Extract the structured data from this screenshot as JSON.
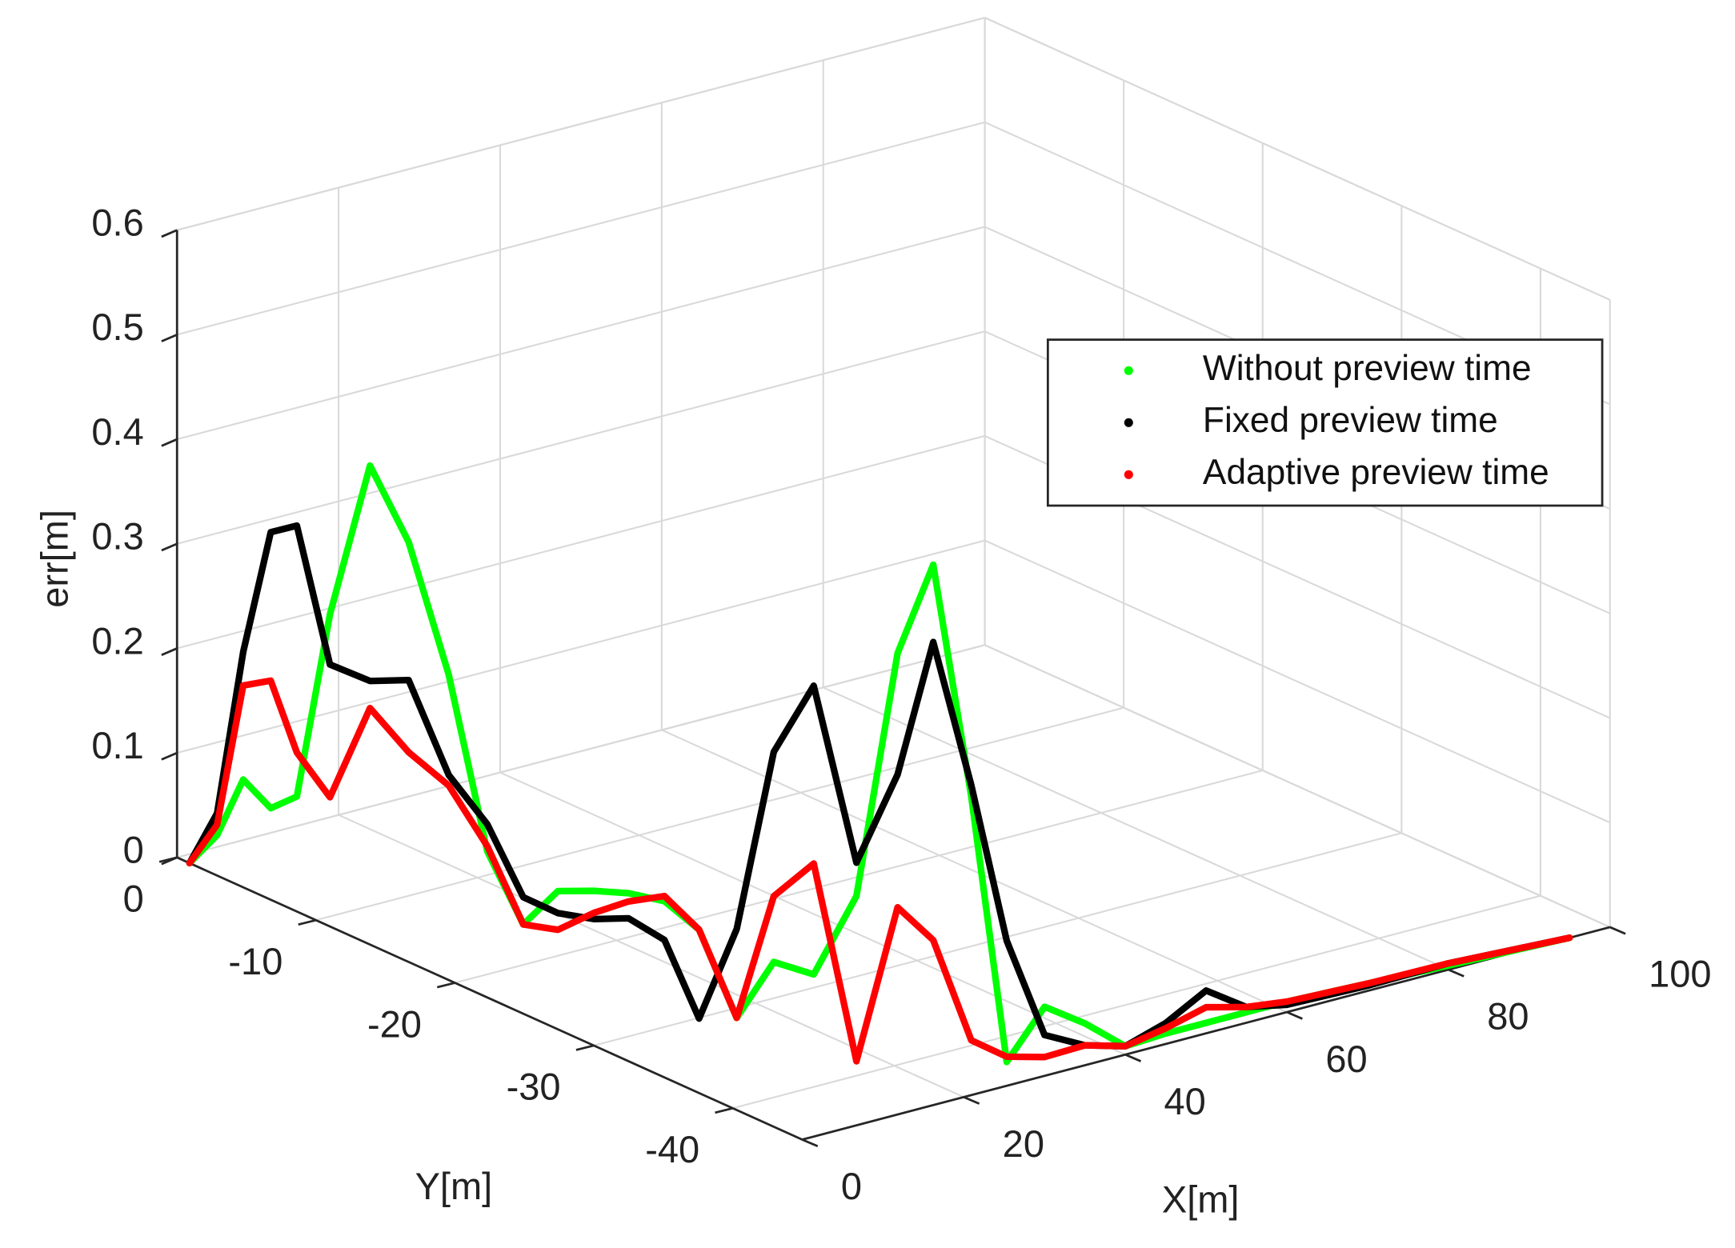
{
  "chart_data": {
    "type": "line3d",
    "xlabel": "X[m]",
    "ylabel": "Y[m]",
    "zlabel": "err[m]",
    "xlim": [
      0,
      100
    ],
    "ylim": [
      -45,
      0
    ],
    "zlim": [
      0,
      0.6
    ],
    "xticks": [
      0,
      20,
      40,
      60,
      80,
      100
    ],
    "yticks": [
      0,
      -10,
      -20,
      -30,
      -40
    ],
    "zticks": [
      0,
      0.1,
      0.2,
      0.3,
      0.4,
      0.5,
      0.6
    ],
    "grid": true,
    "legend_location": "northeast",
    "x": [
      0,
      1,
      2,
      3,
      4,
      5,
      6,
      7,
      8,
      9,
      9.5,
      10,
      10.5,
      11,
      11.5,
      12,
      12.7,
      13.5,
      14.5,
      16,
      18,
      20,
      23,
      26,
      30,
      35,
      40,
      45,
      50,
      55,
      60,
      70,
      80,
      95
    ],
    "y": [
      -0.9,
      -2.3,
      -3.6,
      -5,
      -6.3,
      -8.1,
      -10.4,
      -12.6,
      -14.9,
      -17.1,
      -19.4,
      -21.6,
      -23.9,
      -26.1,
      -28.4,
      -30.6,
      -32.9,
      -35.1,
      -37.4,
      -39.6,
      -41.4,
      -42.8,
      -43.8,
      -44.6,
      -45,
      -45,
      -45,
      -45,
      -45,
      -45,
      -45,
      -45,
      -45,
      -45
    ],
    "series": [
      {
        "name": "Without preview time",
        "color": "#00ff00",
        "values": [
          0,
          0.033,
          0.092,
          0.071,
          0.088,
          0.271,
          0.425,
          0.363,
          0.248,
          0.09,
          0.033,
          0.077,
          0.09,
          0.1,
          0.105,
          0.09,
          0.018,
          0.083,
          0.083,
          0.168,
          0.407,
          0.496,
          0.274,
          0.019,
          0.066,
          0.04,
          0.008,
          0.01,
          0.01,
          0.01,
          0.01,
          0.007,
          0.004,
          0
        ]
      },
      {
        "name": "Fixed preview time",
        "color": "#000000",
        "values": [
          0,
          0.054,
          0.214,
          0.335,
          0.347,
          0.223,
          0.219,
          0.231,
          0.152,
          0.116,
          0.059,
          0.056,
          0.063,
          0.076,
          0.068,
          0.005,
          0.103,
          0.284,
          0.359,
          0.2,
          0.291,
          0.422,
          0.285,
          0.135,
          0.039,
          0.019,
          0.008,
          0.02,
          0.041,
          0.015,
          0.007,
          0.005,
          0.006,
          0
        ]
      },
      {
        "name": "Adaptive preview time",
        "color": "#ff0000",
        "values": [
          0,
          0.043,
          0.182,
          0.193,
          0.13,
          0.096,
          0.193,
          0.162,
          0.142,
          0.095,
          0.033,
          0.04,
          0.069,
          0.092,
          0.11,
          0.09,
          0.018,
          0.146,
          0.189,
          0.01,
          0.164,
          0.137,
          0.041,
          0.024,
          0.018,
          0.019,
          0.008,
          0.015,
          0.025,
          0.015,
          0.01,
          0.007,
          0.006,
          0
        ]
      }
    ]
  }
}
